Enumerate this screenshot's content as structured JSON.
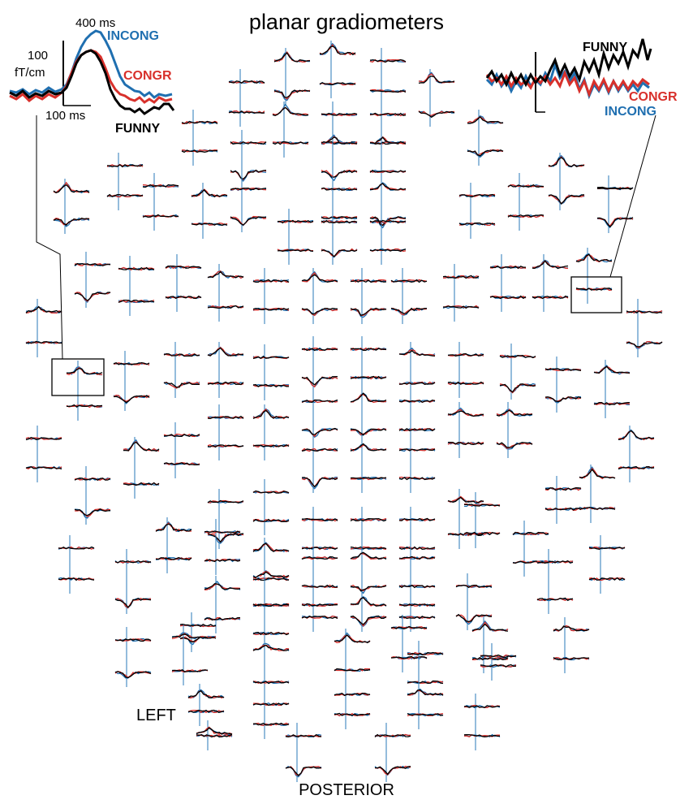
{
  "title": "planar gradiometers",
  "labels": {
    "left": "LEFT",
    "posterior": "POSTERIOR"
  },
  "conditions": [
    {
      "name": "INCONG",
      "color": "#1f6fb0"
    },
    {
      "name": "CONGR",
      "color": "#d8302b"
    },
    {
      "name": "FUNNY",
      "color": "#000000"
    }
  ],
  "left_inset": {
    "time_marker": "400 ms",
    "amplitude_value": "100",
    "amplitude_unit": "fT/cm",
    "time_scale": "100 ms"
  },
  "colors": {
    "stim_line": "#2a7ab8",
    "frame": "#000000"
  }
}
